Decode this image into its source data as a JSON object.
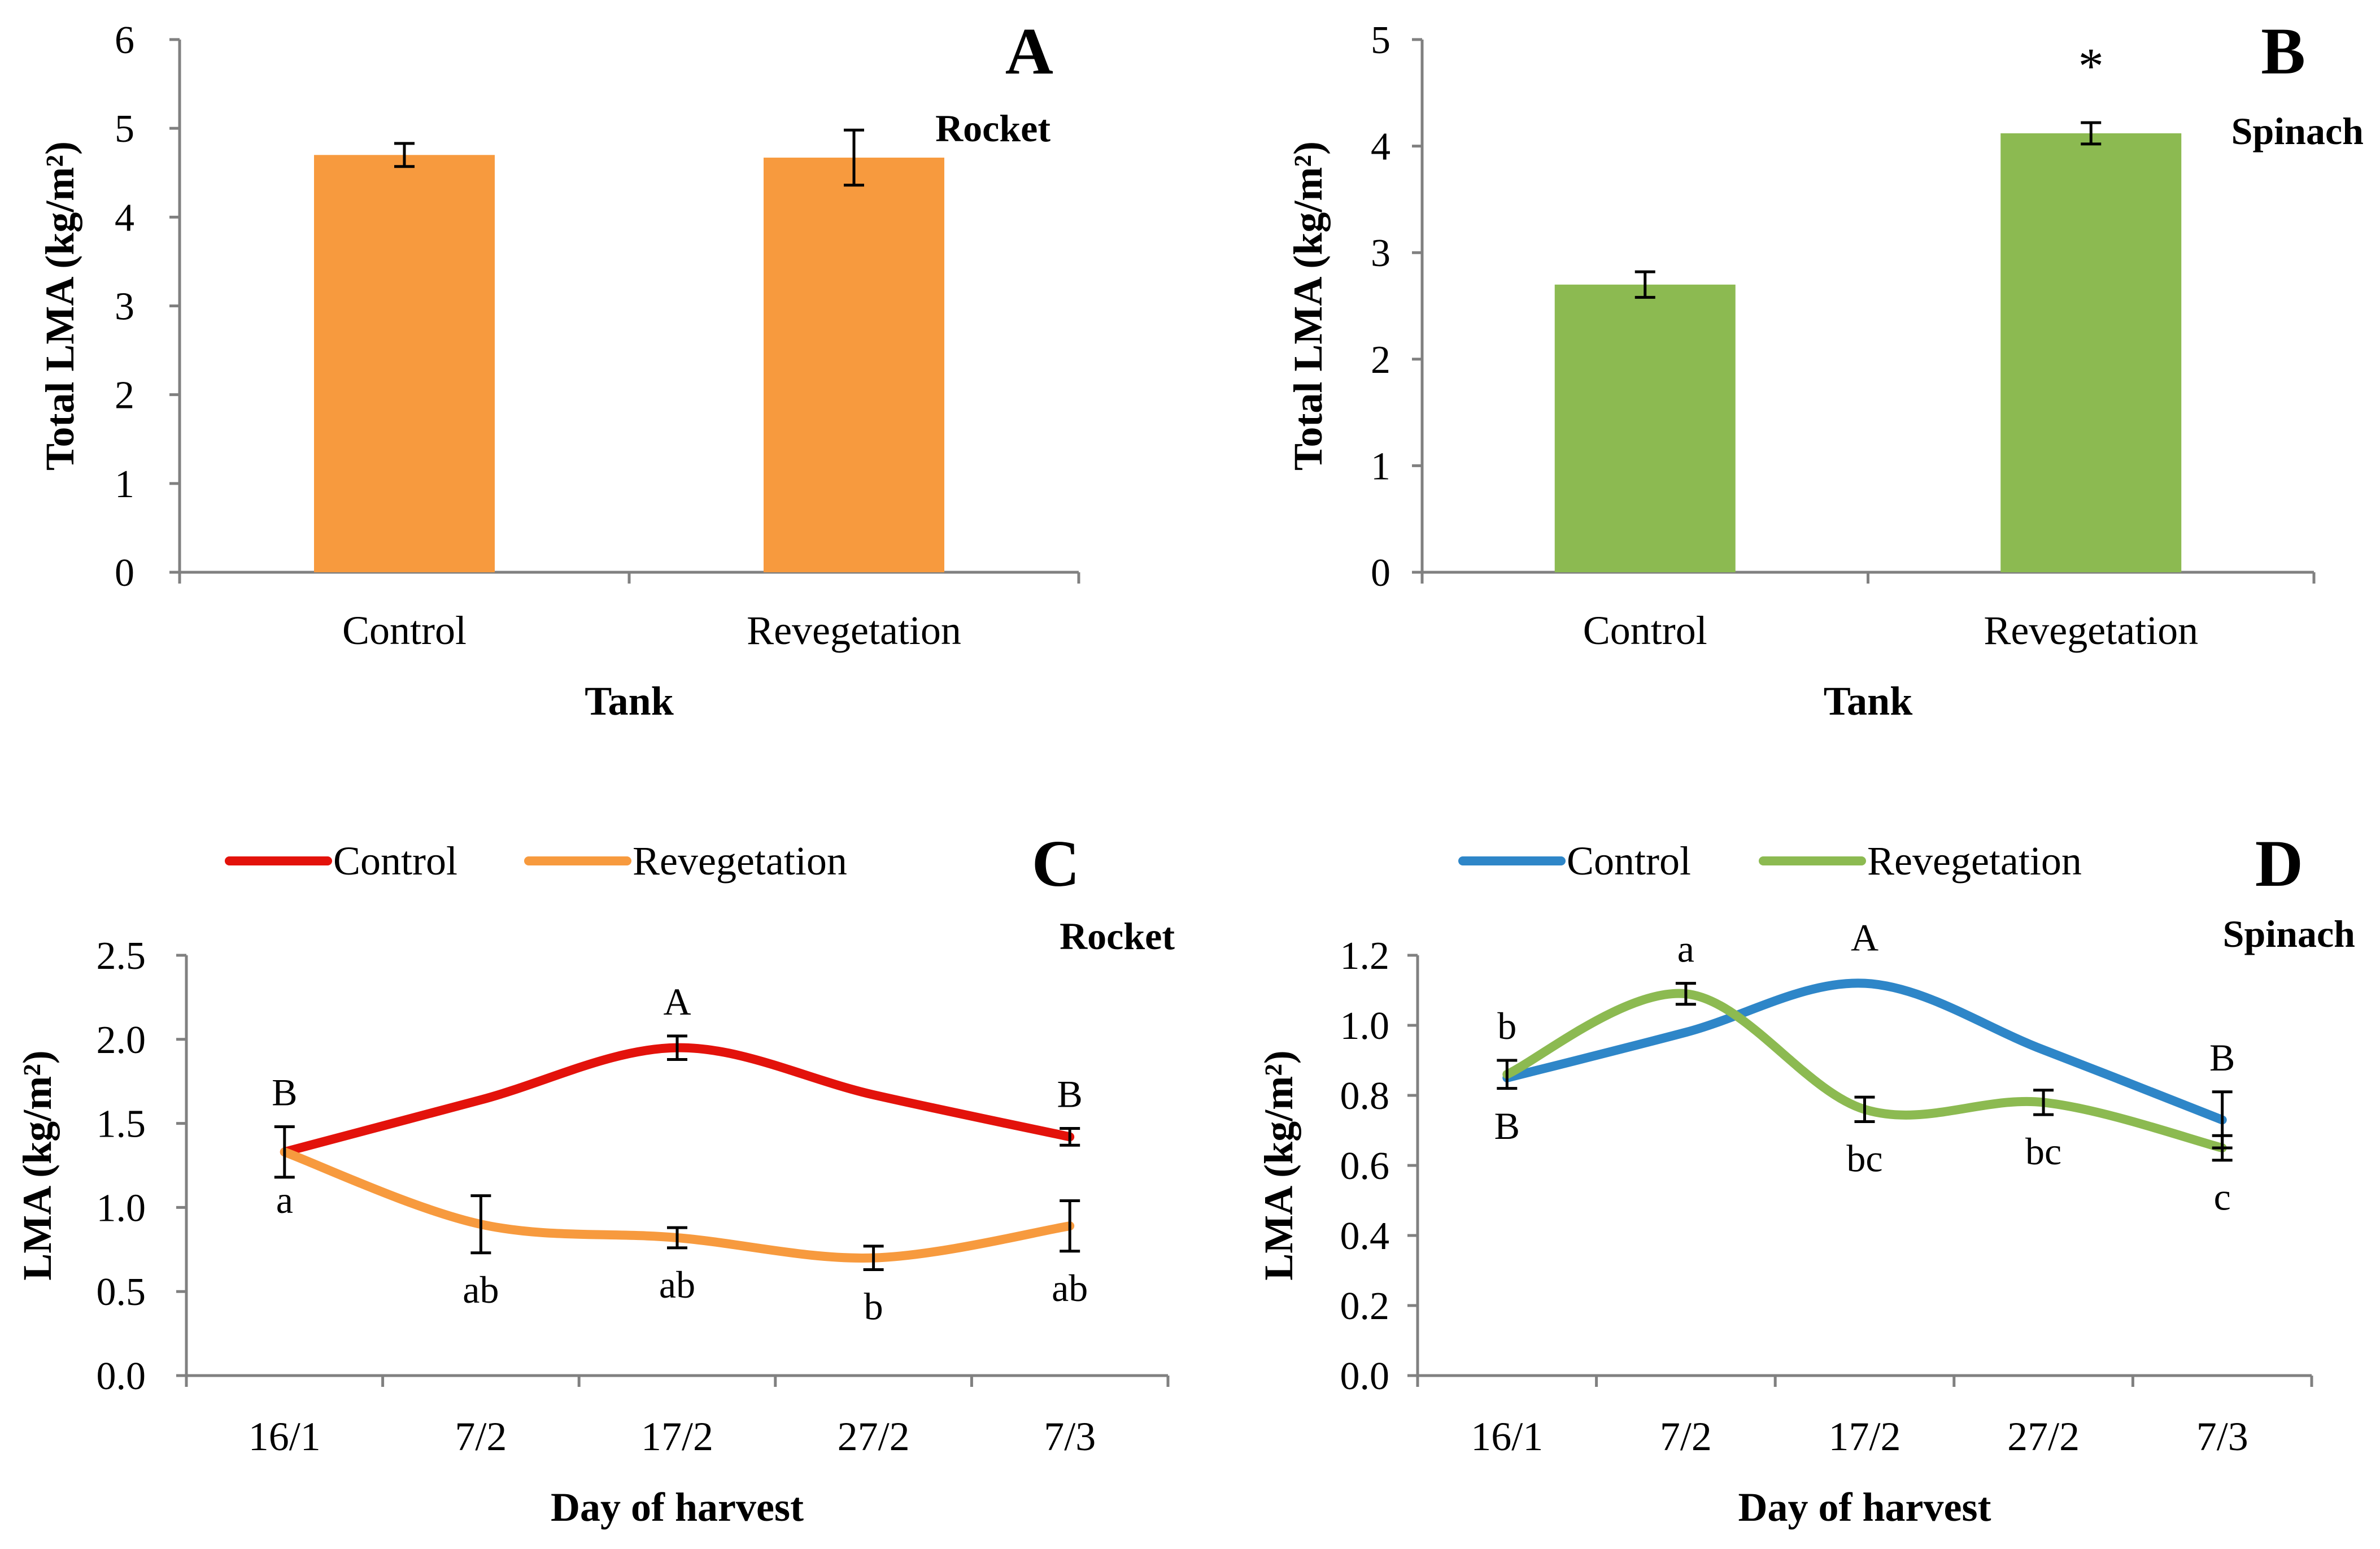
{
  "chart_data": [
    {
      "panel": "A",
      "type": "bar",
      "title": "Rocket",
      "xlabel": "Tank",
      "ylabel": "Total LMA (kg/m²)",
      "ylim": [
        0,
        6
      ],
      "yticks": [
        0,
        1,
        2,
        3,
        4,
        5,
        6
      ],
      "ytick_labels": [
        "0",
        "1",
        "2",
        "3",
        "4",
        "5",
        "6"
      ],
      "categories": [
        "Control",
        "Revegetation"
      ],
      "values": [
        4.7,
        4.67
      ],
      "errors": [
        0.13,
        0.31
      ],
      "color": "#F79A3E",
      "annotations": []
    },
    {
      "panel": "B",
      "type": "bar",
      "title": "Spinach",
      "xlabel": "Tank",
      "ylabel": "Total LMA (kg/m²)",
      "ylim": [
        0,
        5
      ],
      "yticks": [
        0,
        1,
        2,
        3,
        4,
        5
      ],
      "ytick_labels": [
        "0",
        "1",
        "2",
        "3",
        "4",
        "5"
      ],
      "categories": [
        "Control",
        "Revegetation"
      ],
      "values": [
        2.7,
        4.12
      ],
      "errors": [
        0.12,
        0.1
      ],
      "color": "#8CBA51",
      "annotations": [
        "",
        "*"
      ]
    },
    {
      "panel": "C",
      "type": "line",
      "title": "Rocket",
      "xlabel": "Day of harvest",
      "ylabel": "LMA (kg/m²)",
      "ylim": [
        0,
        2.5
      ],
      "yticks": [
        0,
        0.5,
        1,
        1.5,
        2,
        2.5
      ],
      "ytick_labels": [
        "0.0",
        "0.5",
        "1.0",
        "1.5",
        "2.0",
        "2.5"
      ],
      "categories": [
        "16/1",
        "7/2",
        "17/2",
        "27/2",
        "7/3"
      ],
      "series": [
        {
          "name": "Control",
          "color": "#E3120B",
          "values": [
            1.33,
            1.64,
            1.95,
            1.67,
            1.42
          ],
          "errors": [
            0.15,
            null,
            0.07,
            null,
            0.05
          ],
          "labels": [
            "B",
            "",
            "A",
            "",
            "B"
          ],
          "label_pos": [
            "above",
            "above",
            "above",
            "above",
            "above"
          ]
        },
        {
          "name": "Revegetation",
          "color": "#F79A3E",
          "values": [
            1.33,
            0.9,
            0.82,
            0.7,
            0.89
          ],
          "errors": [
            null,
            0.17,
            0.06,
            0.07,
            0.15
          ],
          "labels": [
            "a",
            "ab",
            "ab",
            "b",
            "ab"
          ],
          "label_pos": [
            "below",
            "below",
            "below",
            "below",
            "below"
          ]
        }
      ]
    },
    {
      "panel": "D",
      "type": "line",
      "title": "Spinach",
      "xlabel": "Day of harvest",
      "ylabel": "LMA (kg/m²)",
      "ylim": [
        0,
        1.2
      ],
      "yticks": [
        0,
        0.2,
        0.4,
        0.6,
        0.8,
        1.0,
        1.2
      ],
      "ytick_labels": [
        "0.0",
        "0.2",
        "0.4",
        "0.6",
        "0.8",
        "1.0",
        "1.2"
      ],
      "categories": [
        "16/1",
        "7/2",
        "17/2",
        "27/2",
        "7/3"
      ],
      "series": [
        {
          "name": "Control",
          "color": "#2E86C8",
          "values": [
            0.85,
            0.98,
            1.12,
            0.93,
            0.73
          ],
          "errors": [
            null,
            null,
            null,
            null,
            0.08
          ],
          "labels": [
            "B",
            "",
            "A",
            "",
            "B"
          ],
          "label_pos": [
            "below",
            "below",
            "above",
            "below",
            "above"
          ]
        },
        {
          "name": "Revegetation",
          "color": "#8CBA51",
          "values": [
            0.86,
            1.09,
            0.76,
            0.78,
            0.65
          ],
          "errors": [
            0.04,
            0.03,
            0.035,
            0.035,
            0.035
          ],
          "labels": [
            "b",
            "a",
            "bc",
            "bc",
            "c"
          ],
          "label_pos": [
            "above",
            "above",
            "below",
            "below",
            "below"
          ]
        }
      ]
    }
  ]
}
